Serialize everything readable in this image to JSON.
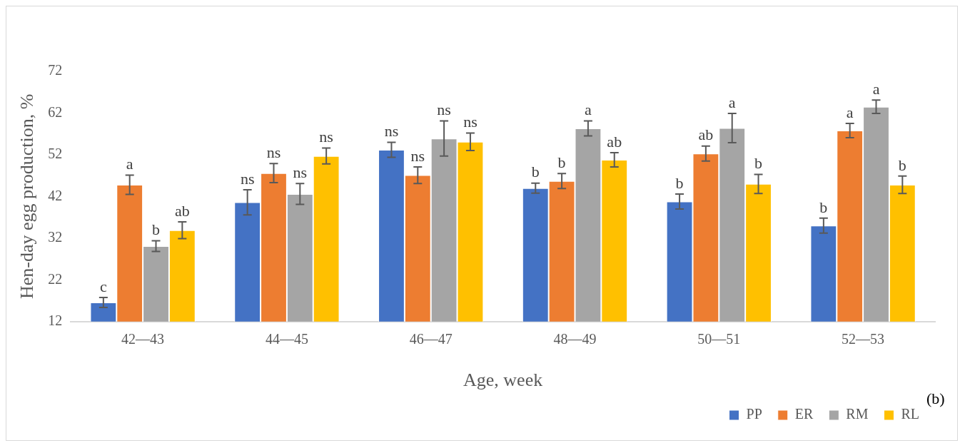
{
  "chart_data": {
    "type": "bar",
    "xlabel": "Age, week",
    "ylabel": "Hen-day egg production, %",
    "categories": [
      "42—43",
      "44—45",
      "46—47",
      "48—49",
      "50—51",
      "52—53"
    ],
    "series": [
      {
        "name": "PP",
        "color": "#4472c4",
        "values": [
          16.6,
          40.6,
          53.2,
          44.0,
          40.8,
          35.0
        ],
        "errors": [
          1.2,
          3.0,
          1.8,
          1.2,
          1.8,
          1.8
        ],
        "value_labels": [
          "c",
          "ns",
          "ns",
          "b",
          "b",
          "b"
        ]
      },
      {
        "name": "ER",
        "color": "#ed7d31",
        "values": [
          44.8,
          47.6,
          47.1,
          45.7,
          52.3,
          57.8
        ],
        "errors": [
          2.3,
          2.3,
          2.0,
          1.8,
          1.8,
          1.7
        ],
        "value_labels": [
          "a",
          "ns",
          "ns",
          "b",
          "ab",
          "a"
        ]
      },
      {
        "name": "RM",
        "color": "#a5a5a5",
        "values": [
          30.1,
          42.6,
          55.9,
          58.3,
          58.4,
          63.5
        ],
        "errors": [
          1.3,
          2.5,
          4.2,
          1.8,
          3.5,
          1.6
        ],
        "value_labels": [
          "b",
          "ns",
          "ns",
          "a",
          "a",
          "a"
        ]
      },
      {
        "name": "RL",
        "color": "#ffc000",
        "values": [
          33.9,
          51.7,
          55.1,
          50.8,
          45.0,
          44.8
        ],
        "errors": [
          2.0,
          1.9,
          2.1,
          1.7,
          2.3,
          2.1
        ],
        "value_labels": [
          "ab",
          "ns",
          "ns",
          "ab",
          "b",
          "b"
        ]
      }
    ],
    "ylim": [
      12,
      72
    ],
    "yticks": [
      12,
      22,
      32,
      42,
      52,
      62,
      72
    ],
    "grid": false,
    "legend": "bottom right",
    "annotations": [
      "(b)"
    ]
  }
}
